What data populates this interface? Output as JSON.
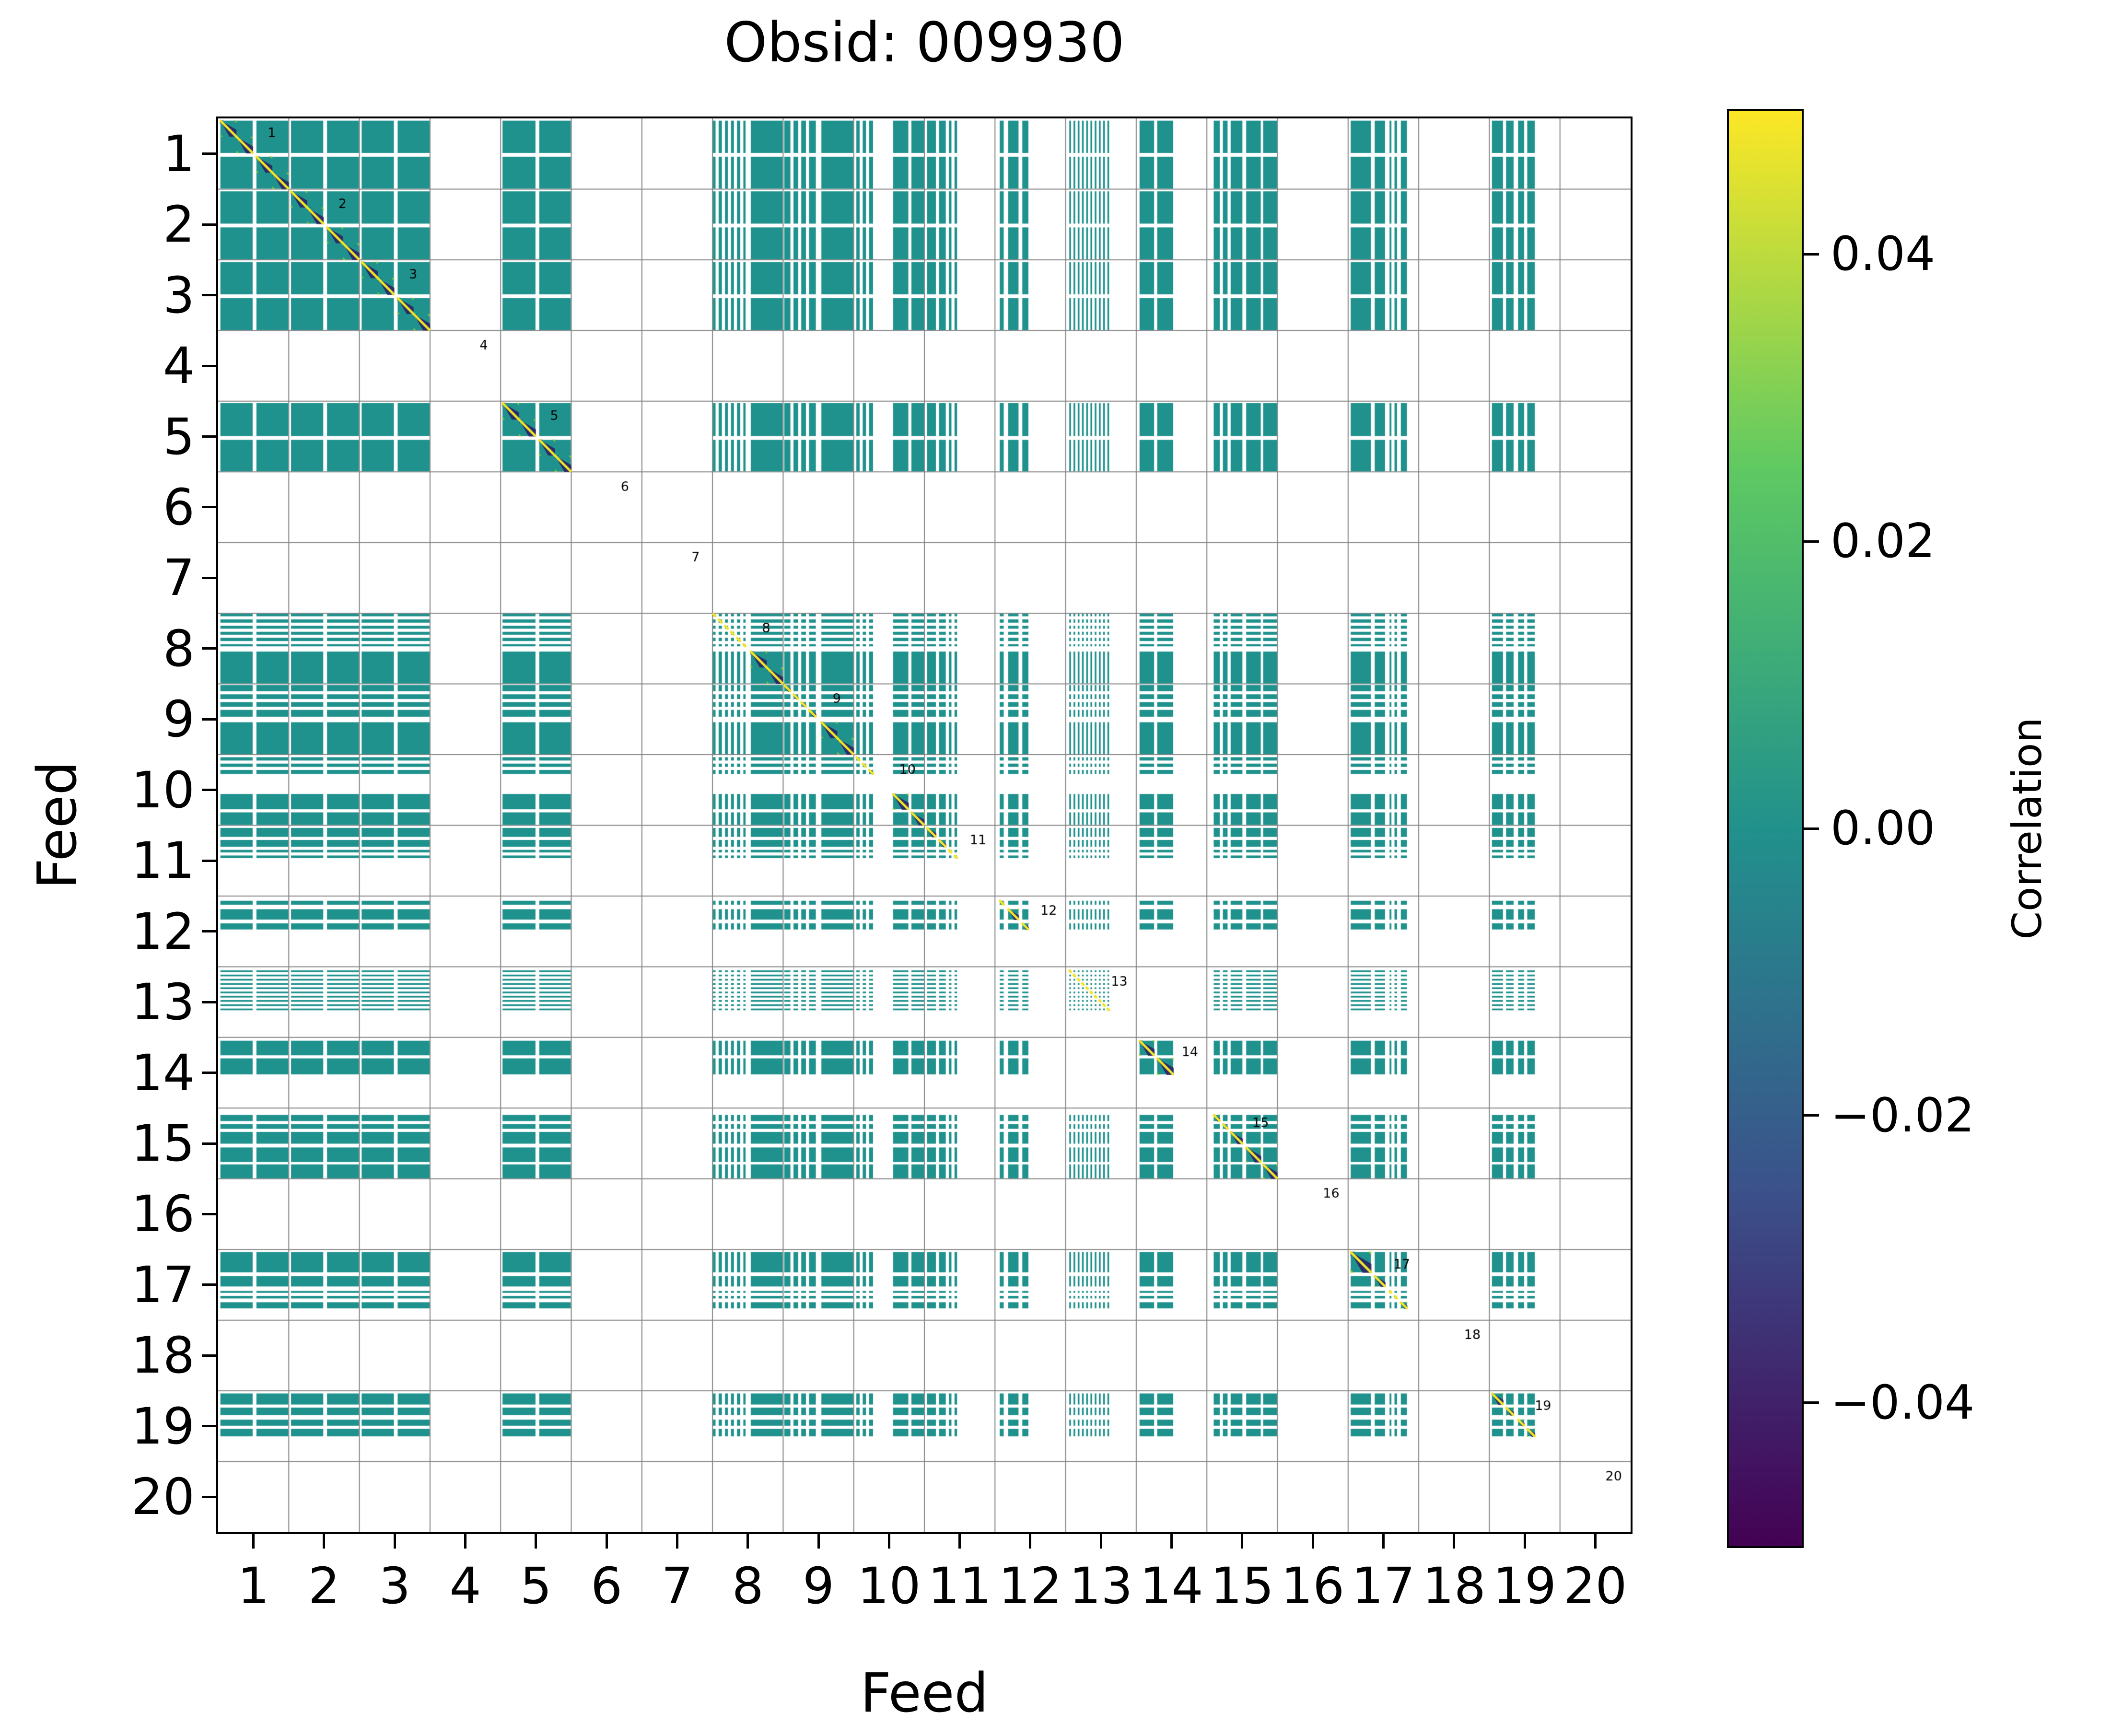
{
  "title": "Obsid: 009930",
  "axes": {
    "x_label": "Feed",
    "y_label": "Feed",
    "tick_labels": [
      "1",
      "2",
      "3",
      "4",
      "5",
      "6",
      "7",
      "8",
      "9",
      "10",
      "11",
      "12",
      "13",
      "14",
      "15",
      "16",
      "17",
      "18",
      "19",
      "20"
    ]
  },
  "colorbar": {
    "label": "Correlation",
    "tick_labels": [
      "0.04",
      "0.02",
      "0.00",
      "−0.02",
      "−0.04"
    ],
    "tick_values": [
      0.04,
      0.02,
      0.0,
      -0.02,
      -0.04
    ],
    "vmin": -0.05,
    "vmax": 0.05,
    "colormap": "viridis",
    "gradient_stops_top_to_bottom": [
      "#fde725",
      "#5ec962",
      "#21918c",
      "#3b528b",
      "#440154"
    ]
  },
  "chart_data": {
    "type": "heatmap",
    "title": "Obsid: 009930",
    "xlabel": "Feed",
    "ylabel": "Feed",
    "n_feeds": 20,
    "present_feeds": [
      1,
      2,
      3,
      5,
      8,
      9,
      10,
      11,
      12,
      13,
      14,
      15,
      17,
      19
    ],
    "missing_feeds": [
      4,
      6,
      7,
      16,
      18,
      20
    ],
    "excluded_pairs": [
      [
        13,
        14
      ]
    ],
    "off_diagonal_value": 0.0,
    "diagonal_value": 1.0,
    "diagonal_labels": [
      "1",
      "2",
      "3",
      "4",
      "5",
      "6",
      "7",
      "8",
      "9",
      "10",
      "11",
      "12",
      "13",
      "14",
      "15",
      "16",
      "17",
      "18",
      "19",
      "20"
    ],
    "feed_band_masks": {
      "1": [
        [
          0.025,
          0.495
        ],
        [
          0.535,
          1.0
        ]
      ],
      "2": [
        [
          0.025,
          0.495
        ],
        [
          0.535,
          1.0
        ]
      ],
      "3": [
        [
          0.025,
          0.495
        ],
        [
          0.535,
          1.0
        ]
      ],
      "4": [],
      "5": [
        [
          0.02,
          0.5
        ],
        [
          0.54,
          1.0
        ]
      ],
      "6": [],
      "7": [],
      "8": [
        [
          0.0,
          0.05
        ],
        [
          0.08,
          0.14
        ],
        [
          0.17,
          0.225
        ],
        [
          0.255,
          0.31
        ],
        [
          0.34,
          0.4
        ],
        [
          0.43,
          0.475
        ],
        [
          0.535,
          1.0
        ]
      ],
      "9": [
        [
          0.01,
          0.11
        ],
        [
          0.14,
          0.22
        ],
        [
          0.25,
          0.33
        ],
        [
          0.36,
          0.47
        ],
        [
          0.535,
          1.0
        ]
      ],
      "10": [
        [
          0.03,
          0.09
        ],
        [
          0.12,
          0.18
        ],
        [
          0.21,
          0.28
        ],
        [
          0.55,
          0.78
        ],
        [
          0.81,
          1.0
        ]
      ],
      "11": [
        [
          0.03,
          0.17
        ],
        [
          0.2,
          0.31
        ],
        [
          0.34,
          0.39
        ],
        [
          0.42,
          0.47
        ]
      ],
      "12": [
        [
          0.06,
          0.13
        ],
        [
          0.18,
          0.34
        ],
        [
          0.38,
          0.48
        ]
      ],
      "13": [
        [
          0.045,
          0.083
        ],
        [
          0.105,
          0.143
        ],
        [
          0.165,
          0.203
        ],
        [
          0.225,
          0.263
        ],
        [
          0.285,
          0.323
        ],
        [
          0.345,
          0.383
        ],
        [
          0.405,
          0.443
        ],
        [
          0.465,
          0.503
        ],
        [
          0.525,
          0.563
        ],
        [
          0.585,
          0.623
        ]
      ],
      "14": [
        [
          0.04,
          0.26
        ],
        [
          0.29,
          0.53
        ]
      ],
      "15": [
        [
          0.09,
          0.19
        ],
        [
          0.22,
          0.3
        ],
        [
          0.33,
          0.51
        ],
        [
          0.55,
          0.77
        ],
        [
          0.79,
          1.0
        ]
      ],
      "16": [],
      "17": [
        [
          0.03,
          0.33
        ],
        [
          0.37,
          0.53
        ],
        [
          0.58,
          0.62
        ],
        [
          0.65,
          0.7
        ],
        [
          0.74,
          0.84
        ]
      ],
      "18": [],
      "19": [
        [
          0.03,
          0.2
        ],
        [
          0.23,
          0.35
        ],
        [
          0.4,
          0.5
        ],
        [
          0.53,
          0.65
        ]
      ],
      "20": []
    },
    "colors": {
      "cell": "#20928e",
      "grid": "#848484",
      "diagonal_line": "#f1e426",
      "wedge": "#2b1b63",
      "accent": "#96d63c",
      "spine": "#000000",
      "background": "#ffffff"
    }
  }
}
